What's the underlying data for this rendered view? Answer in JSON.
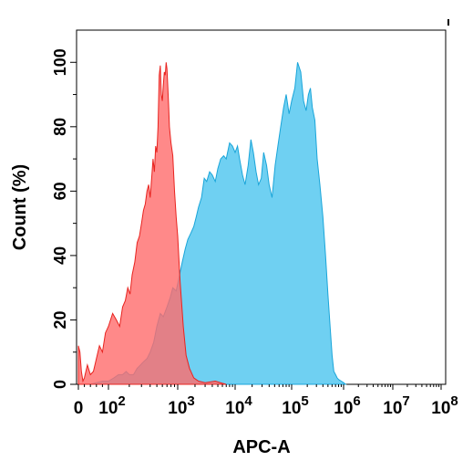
{
  "chart_data": {
    "type": "area",
    "xlabel": "APC-A",
    "ylabel": "Count  (%)",
    "x_scale": "biexponential",
    "ylim": [
      0,
      110
    ],
    "y_ticks": [
      "0",
      "20",
      "40",
      "60",
      "80",
      "100"
    ],
    "x_ticks": [
      {
        "value": 0,
        "base": "0",
        "exp": ""
      },
      {
        "value": 100,
        "base": "10",
        "exp": "2"
      },
      {
        "value": 1000,
        "base": "10",
        "exp": "3"
      },
      {
        "value": 10000,
        "base": "10",
        "exp": "4"
      },
      {
        "value": 100000,
        "base": "10",
        "exp": "5"
      },
      {
        "value": 1000000,
        "base": "10",
        "exp": "6"
      },
      {
        "value": 10000000,
        "base": "10",
        "exp": "7"
      },
      {
        "value": 100000000,
        "base": "10",
        "exp": "8"
      }
    ],
    "series": [
      {
        "color": "#ff6b6b",
        "stroke": "#e8231f",
        "opacity": 0.8,
        "points": [
          [
            0,
            12
          ],
          [
            5,
            10
          ],
          [
            10,
            4
          ],
          [
            15,
            1
          ],
          [
            20,
            2
          ],
          [
            30,
            6
          ],
          [
            40,
            3
          ],
          [
            50,
            4
          ],
          [
            60,
            8
          ],
          [
            70,
            12
          ],
          [
            80,
            10
          ],
          [
            90,
            16
          ],
          [
            100,
            18
          ],
          [
            115,
            22
          ],
          [
            130,
            20
          ],
          [
            145,
            18
          ],
          [
            160,
            24
          ],
          [
            175,
            26
          ],
          [
            190,
            30
          ],
          [
            205,
            28
          ],
          [
            220,
            34
          ],
          [
            240,
            38
          ],
          [
            260,
            44
          ],
          [
            280,
            46
          ],
          [
            300,
            50
          ],
          [
            320,
            54
          ],
          [
            340,
            56
          ],
          [
            360,
            60
          ],
          [
            380,
            62
          ],
          [
            400,
            58
          ],
          [
            420,
            64
          ],
          [
            440,
            70
          ],
          [
            460,
            66
          ],
          [
            480,
            74
          ],
          [
            500,
            72
          ],
          [
            520,
            80
          ],
          [
            540,
            96
          ],
          [
            560,
            99
          ],
          [
            580,
            90
          ],
          [
            600,
            88
          ],
          [
            620,
            93
          ],
          [
            640,
            97
          ],
          [
            660,
            96
          ],
          [
            680,
            100
          ],
          [
            700,
            98
          ],
          [
            720,
            92
          ],
          [
            740,
            86
          ],
          [
            760,
            80
          ],
          [
            800,
            75
          ],
          [
            850,
            71
          ],
          [
            900,
            60
          ],
          [
            950,
            52
          ],
          [
            1000,
            46
          ],
          [
            1100,
            32
          ],
          [
            1250,
            18
          ],
          [
            1400,
            9
          ],
          [
            1600,
            5
          ],
          [
            1900,
            2
          ],
          [
            2300,
            1
          ],
          [
            3000,
            0.5
          ],
          [
            4500,
            1
          ],
          [
            6000,
            0.3
          ],
          [
            7000,
            0
          ]
        ]
      },
      {
        "color": "#56c8f0",
        "stroke": "#1aa5d9",
        "opacity": 0.85,
        "points": [
          [
            40,
            0
          ],
          [
            60,
            0.5
          ],
          [
            80,
            1
          ],
          [
            100,
            1
          ],
          [
            120,
            2
          ],
          [
            140,
            3
          ],
          [
            160,
            3
          ],
          [
            180,
            4
          ],
          [
            200,
            3
          ],
          [
            230,
            3
          ],
          [
            260,
            5
          ],
          [
            290,
            6
          ],
          [
            320,
            7
          ],
          [
            360,
            8
          ],
          [
            400,
            10
          ],
          [
            450,
            13
          ],
          [
            500,
            18
          ],
          [
            560,
            22
          ],
          [
            620,
            21
          ],
          [
            700,
            24
          ],
          [
            780,
            27
          ],
          [
            850,
            30
          ],
          [
            950,
            29
          ],
          [
            1050,
            33
          ],
          [
            1200,
            38
          ],
          [
            1350,
            42
          ],
          [
            1500,
            45
          ],
          [
            1700,
            47
          ],
          [
            1900,
            49
          ],
          [
            2100,
            52
          ],
          [
            2300,
            55
          ],
          [
            2600,
            58
          ],
          [
            2900,
            64
          ],
          [
            3200,
            63
          ],
          [
            3600,
            66
          ],
          [
            4000,
            65
          ],
          [
            4500,
            63
          ],
          [
            5000,
            67
          ],
          [
            5600,
            70
          ],
          [
            6300,
            71
          ],
          [
            7000,
            70
          ],
          [
            8000,
            75
          ],
          [
            9000,
            74
          ],
          [
            10000,
            72
          ],
          [
            11000,
            74
          ],
          [
            12000,
            70
          ],
          [
            13500,
            65
          ],
          [
            15000,
            62
          ],
          [
            17000,
            68
          ],
          [
            19000,
            76
          ],
          [
            21000,
            72
          ],
          [
            23500,
            66
          ],
          [
            26000,
            62
          ],
          [
            29000,
            64
          ],
          [
            32000,
            72
          ],
          [
            36000,
            68
          ],
          [
            40000,
            62
          ],
          [
            45000,
            58
          ],
          [
            51000,
            68
          ],
          [
            57000,
            74
          ],
          [
            64000,
            80
          ],
          [
            72000,
            86
          ],
          [
            80000,
            90
          ],
          [
            90000,
            84
          ],
          [
            100000,
            88
          ],
          [
            115000,
            92
          ],
          [
            130000,
            100
          ],
          [
            150000,
            97
          ],
          [
            170000,
            88
          ],
          [
            190000,
            85
          ],
          [
            210000,
            90
          ],
          [
            230000,
            92
          ],
          [
            250000,
            86
          ],
          [
            280000,
            82
          ],
          [
            310000,
            70
          ],
          [
            350000,
            62
          ],
          [
            400000,
            52
          ],
          [
            450000,
            40
          ],
          [
            500000,
            28
          ],
          [
            550000,
            18
          ],
          [
            600000,
            9
          ],
          [
            650000,
            4
          ],
          [
            700000,
            3
          ],
          [
            750000,
            2
          ],
          [
            800000,
            1.5
          ],
          [
            900000,
            1
          ],
          [
            1000000,
            0.5
          ],
          [
            1100000,
            0
          ]
        ]
      }
    ]
  }
}
